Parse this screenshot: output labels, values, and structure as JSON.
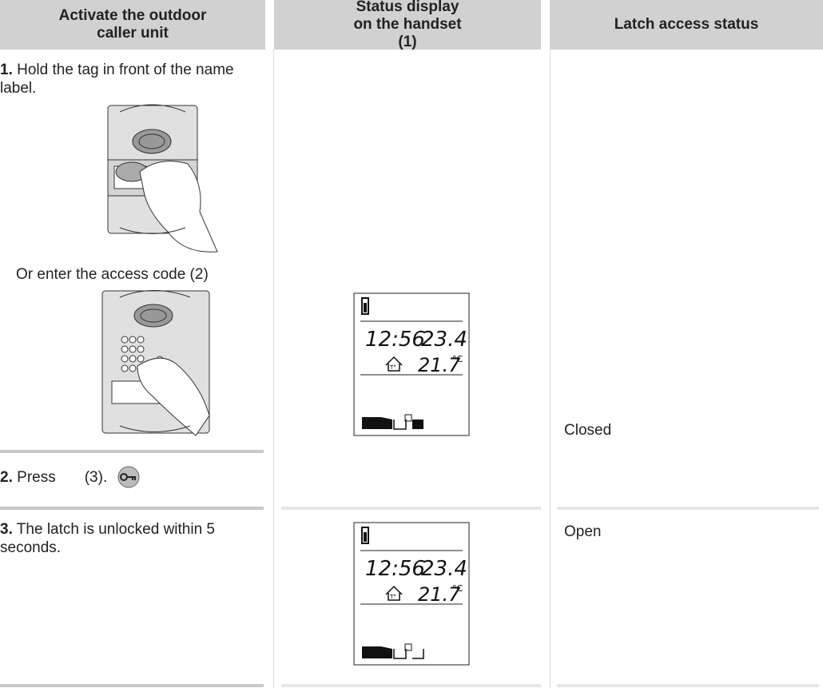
{
  "header": {
    "columns": [
      "Activate the outdoor caller unit",
      "Status display on the handset (1)",
      "Latch access status"
    ]
  },
  "rows": [
    {
      "number": "1.",
      "text": "Hold the tag in front of the name label.",
      "alt_text": "Or enter the access code (2)",
      "display": {
        "time": "12:56",
        "reading": "23.4",
        "temperature": "21.7",
        "unit": "°C",
        "sensor": "T°"
      },
      "status": "Closed"
    },
    {
      "number": "2.",
      "text_before": "Press",
      "text_after": "(3)."
    },
    {
      "number": "3.",
      "text": "The latch is unlocked within 5 seconds.",
      "display": {
        "time": "12:56",
        "reading": "23.4",
        "temperature": "21.7",
        "unit": "°C",
        "sensor": "T°"
      },
      "status": "Open"
    }
  ]
}
